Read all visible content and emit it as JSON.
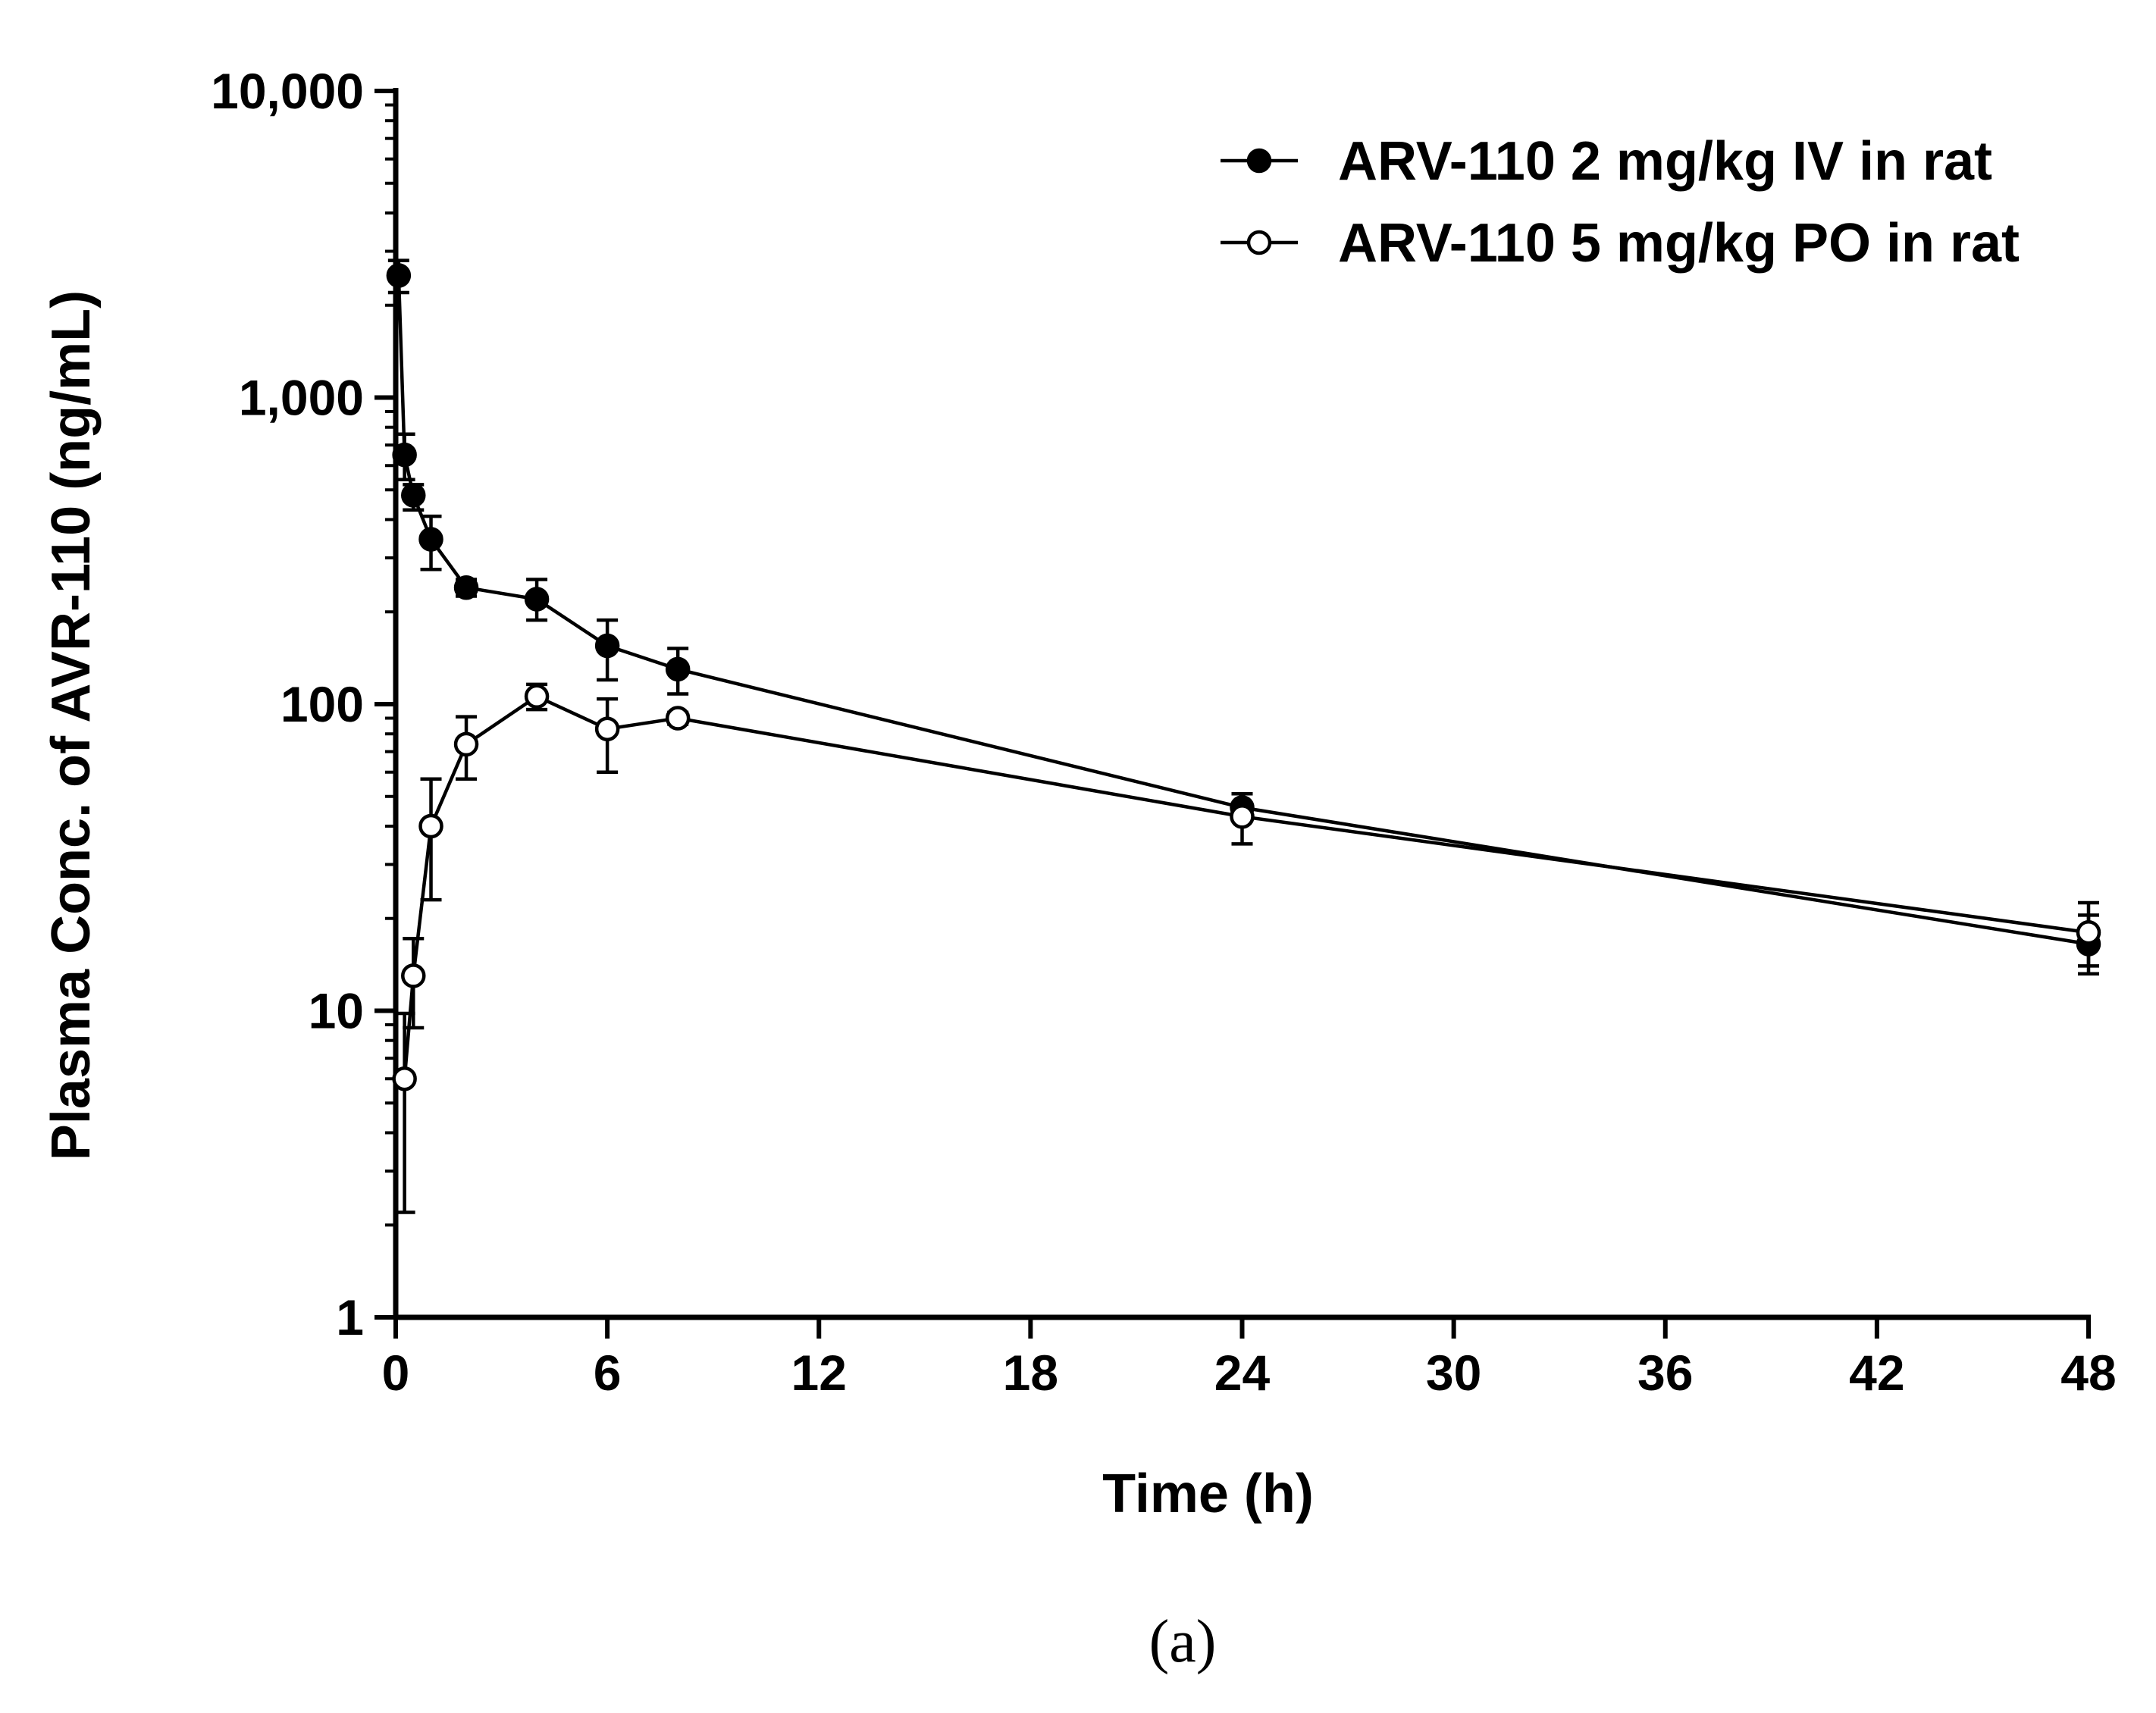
{
  "chart_data": {
    "type": "line",
    "title": "",
    "xlabel": "Time (h)",
    "ylabel": "Plasma Conc. of AVR-110 (ng/mL)",
    "yscale": "log",
    "xlim": [
      0,
      48
    ],
    "ylim": [
      1,
      10000
    ],
    "x_ticks": [
      0,
      6,
      12,
      18,
      24,
      30,
      36,
      42,
      48
    ],
    "x_tick_labels": [
      "0",
      "6",
      "12",
      "18",
      "24",
      "30",
      "36",
      "42",
      "48"
    ],
    "y_ticks": [
      1,
      10,
      100,
      1000,
      10000
    ],
    "y_tick_labels": [
      "1",
      "10",
      "100",
      "1,000",
      "10,000"
    ],
    "grid": false,
    "legend_position": "top-right",
    "series": [
      {
        "name": "ARV-110 2 mg/kg IV in rat",
        "marker": "filled-circle",
        "x": [
          0.083,
          0.25,
          0.5,
          1,
          2,
          4,
          6,
          8,
          24,
          48
        ],
        "y": [
          2500,
          650,
          480,
          345,
          240,
          220,
          155,
          130,
          46,
          16.5
        ],
        "err_low": [
          2200,
          540,
          430,
          275,
          225,
          188,
          120,
          108,
          42,
          13.2
        ],
        "err_high": [
          2800,
          760,
          520,
          410,
          255,
          255,
          188,
          152,
          51,
          20.5
        ]
      },
      {
        "name": "ARV-110 5 mg/kg PO in rat",
        "marker": "open-circle",
        "x": [
          0.25,
          0.5,
          1,
          2,
          4,
          6,
          8,
          24,
          48
        ],
        "y": [
          6,
          13,
          40,
          74,
          106,
          83,
          90,
          43,
          18
        ],
        "err_low": [
          2.2,
          8.8,
          23,
          57,
          96,
          60,
          86,
          35,
          14
        ],
        "err_high": [
          9.8,
          17.2,
          57,
          91,
          116,
          104,
          94,
          51,
          22.5
        ]
      }
    ]
  },
  "figure": {
    "panel_label": "(a)"
  }
}
